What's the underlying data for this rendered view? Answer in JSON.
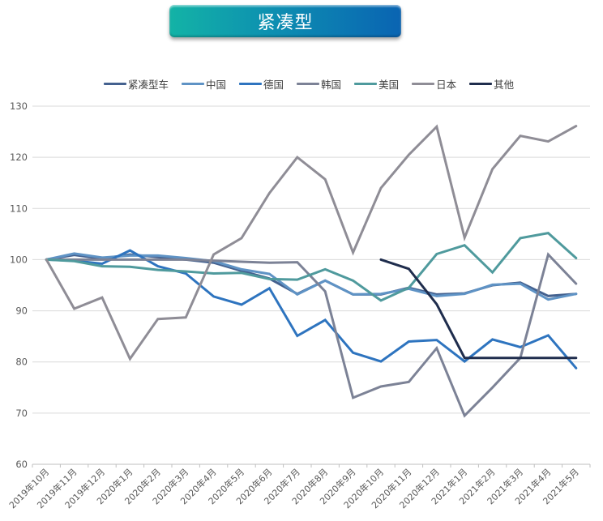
{
  "title": "紧凑型",
  "legend": [
    {
      "label": "紧凑型车",
      "color": "#44618f"
    },
    {
      "label": "中国",
      "color": "#5f93c5"
    },
    {
      "label": "德国",
      "color": "#2e74bf"
    },
    {
      "label": "韩国",
      "color": "#7c8296"
    },
    {
      "label": "美国",
      "color": "#4f9a9d"
    },
    {
      "label": "日本",
      "color": "#8f8d96"
    },
    {
      "label": "其他",
      "color": "#1f2d4d"
    }
  ],
  "chart_data": {
    "type": "line",
    "title": "紧凑型",
    "xlabel": "",
    "ylabel": "",
    "ylim": [
      60,
      130
    ],
    "yticks": [
      60,
      70,
      80,
      90,
      100,
      110,
      120,
      130
    ],
    "grid": true,
    "legend_position": "top",
    "categories": [
      "2019年10月",
      "2019年11月",
      "2019年12月",
      "2020年1月",
      "2020年2月",
      "2020年3月",
      "2020年4月",
      "2020年5月",
      "2020年6月",
      "2020年7月",
      "2020年8月",
      "2020年9月",
      "2020年10月",
      "2020年11月",
      "2020年12月",
      "2021年1月",
      "2021年2月",
      "2021年3月",
      "2021年4月",
      "2021年5月"
    ],
    "series": [
      {
        "name": "紧凑型车",
        "color": "#44618f",
        "values": [
          100,
          100.9,
          100.2,
          101.0,
          100.5,
          100.0,
          99.4,
          97.8,
          96.3,
          93.3,
          95.9,
          93.2,
          93.2,
          94.5,
          93.2,
          93.4,
          95.0,
          95.5,
          92.9,
          93.3
        ]
      },
      {
        "name": "中国",
        "color": "#5f93c5",
        "values": [
          100,
          101.2,
          100.4,
          100.8,
          100.8,
          100.3,
          99.7,
          98.1,
          97.2,
          93.2,
          95.9,
          93.2,
          93.3,
          94.3,
          92.9,
          93.3,
          95.1,
          95.3,
          92.2,
          93.3
        ]
      },
      {
        "name": "德国",
        "color": "#2e74bf",
        "values": [
          100,
          99.8,
          99.2,
          101.8,
          98.7,
          97.3,
          92.8,
          91.2,
          94.4,
          85.1,
          88.2,
          81.8,
          80.1,
          84.0,
          84.3,
          80.1,
          84.4,
          82.9,
          85.2,
          78.8
        ]
      },
      {
        "name": "韩国",
        "color": "#7c8296",
        "values": [
          100,
          100.0,
          100.0,
          100.0,
          100.0,
          100.0,
          99.8,
          99.6,
          99.4,
          99.5,
          93.8,
          73.0,
          75.2,
          76.1,
          82.7,
          69.5,
          75.0,
          80.8,
          101.0,
          95.3
        ]
      },
      {
        "name": "美国",
        "color": "#4f9a9d",
        "values": [
          100,
          99.7,
          98.7,
          98.6,
          98.0,
          97.7,
          97.3,
          97.4,
          96.2,
          96.1,
          98.1,
          95.9,
          92.0,
          94.5,
          101.1,
          102.8,
          97.5,
          104.2,
          105.2,
          100.3
        ]
      },
      {
        "name": "日本",
        "color": "#8f8d96",
        "values": [
          100,
          90.4,
          92.6,
          80.6,
          88.4,
          88.7,
          101.0,
          104.2,
          113.0,
          120.0,
          115.7,
          101.4,
          114.0,
          120.5,
          126.0,
          104.3,
          117.7,
          124.2,
          123.1,
          126.1
        ]
      },
      {
        "name": "其他",
        "color": "#1f2d4d",
        "values": [
          null,
          null,
          null,
          null,
          null,
          null,
          null,
          null,
          null,
          null,
          null,
          null,
          100.0,
          98.2,
          91.3,
          80.8,
          80.8,
          80.8,
          80.8,
          80.8
        ]
      }
    ]
  }
}
